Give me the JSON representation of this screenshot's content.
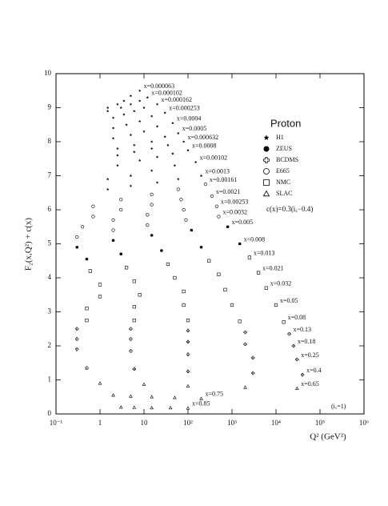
{
  "chart_data": {
    "type": "scatter",
    "x_log": true,
    "y_label": "F₂(x,Q²) + c(x)",
    "x_label": "Q² (GeV²)",
    "legend": {
      "title": "Proton",
      "entries": [
        "H1",
        "ZEUS",
        "BCDMS",
        "E665",
        "NMC",
        "SLAC"
      ]
    },
    "annotations": [
      "c(x)=0.3(iₓ−0.4)",
      "(iₓ=1)"
    ],
    "xlim": [
      0.1,
      1000000
    ],
    "ylim": [
      0,
      10
    ],
    "xticks": [
      {
        "value": 0.1,
        "label": "10⁻¹"
      },
      1,
      10,
      {
        "value": 100,
        "label": "10²"
      },
      {
        "value": 1000,
        "label": "10³"
      },
      {
        "value": 10000,
        "label": "10⁴"
      },
      {
        "value": 100000,
        "label": "10⁵"
      },
      {
        "value": 1000000,
        "label": "10⁶"
      }
    ],
    "yticks": [
      0,
      1,
      2,
      3,
      4,
      5,
      6,
      7,
      8,
      9,
      10
    ],
    "series": [
      {
        "name": "x=0.000063",
        "marker": "H1",
        "x": [
          1.5,
          2.5,
          3.5,
          5,
          8
        ],
        "values": [
          9.0,
          9.1,
          9.2,
          9.35,
          9.5
        ]
      },
      {
        "name": "x=0.000102",
        "marker": "H1",
        "x": [
          1.5,
          3,
          5,
          8,
          12
        ],
        "values": [
          8.9,
          9.0,
          9.1,
          9.2,
          9.3
        ]
      },
      {
        "name": "x=0.000162",
        "marker": "H1",
        "x": [
          2,
          3.5,
          6,
          10,
          20
        ],
        "values": [
          8.7,
          8.8,
          8.9,
          9.0,
          9.1
        ]
      },
      {
        "name": "x=0.000253",
        "marker": "H1",
        "x": [
          2,
          4,
          8,
          15,
          30
        ],
        "values": [
          8.4,
          8.5,
          8.6,
          8.75,
          8.85
        ]
      },
      {
        "name": "x=0.0004",
        "marker": "H1",
        "x": [
          2,
          5,
          10,
          20,
          45
        ],
        "values": [
          8.1,
          8.2,
          8.3,
          8.45,
          8.55
        ]
      },
      {
        "name": "x=0.0005",
        "marker": "H1",
        "x": [
          2.5,
          6,
          15,
          30,
          60
        ],
        "values": [
          7.8,
          7.9,
          8.0,
          8.15,
          8.25
        ]
      },
      {
        "name": "x=0.000632",
        "marker": "H1",
        "x": [
          2.5,
          6,
          15,
          35,
          80
        ],
        "values": [
          7.6,
          7.7,
          7.8,
          7.9,
          8.0
        ]
      },
      {
        "name": "x=0.0008",
        "marker": "H1",
        "x": [
          2.5,
          8,
          20,
          45,
          100
        ],
        "values": [
          7.3,
          7.45,
          7.55,
          7.65,
          7.75
        ]
      },
      {
        "name": "x=0.00102",
        "marker": "H1",
        "x": [
          1.5,
          5,
          15,
          50,
          150
        ],
        "values": [
          6.9,
          7.0,
          7.15,
          7.3,
          7.4
        ]
      },
      {
        "name": "x=0.0013",
        "marker": "H1",
        "x": [
          1.5,
          5,
          20,
          60,
          200
        ],
        "values": [
          6.6,
          6.7,
          6.8,
          6.9,
          7.0
        ]
      },
      {
        "name": "x=0.00161",
        "marker": "E665",
        "x": [
          0.7,
          3,
          15,
          60,
          250
        ],
        "values": [
          6.1,
          6.3,
          6.45,
          6.6,
          6.75
        ]
      },
      {
        "name": "x=0.0021",
        "marker": "E665",
        "x": [
          0.7,
          3,
          15,
          70,
          350
        ],
        "values": [
          5.8,
          6.0,
          6.15,
          6.3,
          6.4
        ]
      },
      {
        "name": "x=0.00253",
        "marker": "E665",
        "x": [
          0.4,
          2,
          12,
          80,
          450
        ],
        "values": [
          5.5,
          5.7,
          5.85,
          6.0,
          6.1
        ]
      },
      {
        "name": "x=0.0032",
        "marker": "E665",
        "x": [
          0.3,
          2,
          12,
          90,
          500
        ],
        "values": [
          5.2,
          5.4,
          5.55,
          5.7,
          5.8
        ]
      },
      {
        "name": "x=0.005",
        "marker": "ZEUS",
        "x": [
          0.3,
          2,
          15,
          120,
          800
        ],
        "values": [
          4.9,
          5.1,
          5.25,
          5.4,
          5.5
        ]
      },
      {
        "name": "x=0.008",
        "marker": "ZEUS",
        "x": [
          0.5,
          3,
          25,
          200,
          1500
        ],
        "values": [
          4.55,
          4.7,
          4.8,
          4.9,
          5.0
        ]
      },
      {
        "name": "x=0.013",
        "marker": "NMC",
        "x": [
          0.6,
          4,
          35,
          300,
          2500
        ],
        "values": [
          4.2,
          4.3,
          4.4,
          4.5,
          4.6
        ]
      },
      {
        "name": "x=0.021",
        "marker": "NMC",
        "x": [
          1,
          6,
          50,
          500,
          4000
        ],
        "values": [
          3.8,
          3.9,
          4.0,
          4.1,
          4.15
        ]
      },
      {
        "name": "x=0.032",
        "marker": "NMC",
        "x": [
          1,
          8,
          80,
          700,
          6000
        ],
        "values": [
          3.45,
          3.5,
          3.6,
          3.65,
          3.7
        ]
      },
      {
        "name": "x=0.05",
        "marker": "NMC",
        "x": [
          0.5,
          6,
          80,
          1000,
          10000
        ],
        "values": [
          3.1,
          3.15,
          3.2,
          3.2,
          3.2
        ]
      },
      {
        "name": "x=0.08",
        "marker": "NMC",
        "x": [
          0.5,
          6,
          100,
          1500,
          15000
        ],
        "values": [
          2.75,
          2.75,
          2.75,
          2.72,
          2.7
        ]
      },
      {
        "name": "x=0.13",
        "marker": "BCDMS",
        "x": [
          0.3,
          5,
          100,
          2000,
          20000
        ],
        "values": [
          2.5,
          2.5,
          2.45,
          2.4,
          2.35
        ]
      },
      {
        "name": "x=0.18",
        "marker": "BCDMS",
        "x": [
          0.3,
          5,
          100,
          2000,
          25000
        ],
        "values": [
          2.2,
          2.2,
          2.12,
          2.05,
          2.0
        ]
      },
      {
        "name": "x=0.25",
        "marker": "BCDMS",
        "x": [
          0.3,
          5,
          100,
          3000,
          30000
        ],
        "values": [
          1.9,
          1.85,
          1.75,
          1.65,
          1.6
        ]
      },
      {
        "name": "x=0.4",
        "marker": "BCDMS",
        "x": [
          0.5,
          6,
          100,
          3000,
          40000
        ],
        "values": [
          1.35,
          1.32,
          1.25,
          1.2,
          1.15
        ]
      },
      {
        "name": "x=0.65",
        "marker": "SLAC",
        "x": [
          1,
          10,
          100,
          2000,
          30000
        ],
        "values": [
          0.9,
          0.87,
          0.82,
          0.78,
          0.75
        ]
      },
      {
        "name": "x=0.75",
        "marker": "SLAC",
        "x": [
          2,
          5,
          15,
          50,
          200
        ],
        "values": [
          0.55,
          0.52,
          0.5,
          0.48,
          0.45
        ]
      },
      {
        "name": "x=0.85",
        "marker": "SLAC",
        "x": [
          3,
          6,
          15,
          40,
          100
        ],
        "values": [
          0.2,
          0.19,
          0.18,
          0.18,
          0.17
        ]
      }
    ]
  }
}
